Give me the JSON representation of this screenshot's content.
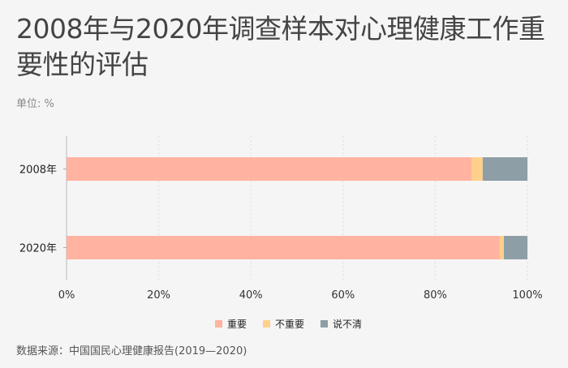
{
  "title": "2008年与2020年调查样本对心理健康工作重要性的评估",
  "unit": "单位: %",
  "source": "数据来源：中国国民心理健康报告(2019—2020)",
  "chart_data": {
    "type": "bar",
    "orientation": "horizontal",
    "stacked": true,
    "categories": [
      "2008年",
      "2020年"
    ],
    "series": [
      {
        "name": "重要",
        "color": "#ffb3a0",
        "values": [
          87.9,
          94.0
        ]
      },
      {
        "name": "不重要",
        "color": "#ffd08a",
        "values": [
          2.4,
          0.9
        ]
      },
      {
        "name": "说不清",
        "color": "#8d9ea6",
        "values": [
          9.7,
          5.1
        ]
      }
    ],
    "xlim": [
      0,
      100
    ],
    "xticks": [
      "0%",
      "20%",
      "40%",
      "60%",
      "80%",
      "100%"
    ],
    "grid": true,
    "legend": "bottom-center"
  }
}
